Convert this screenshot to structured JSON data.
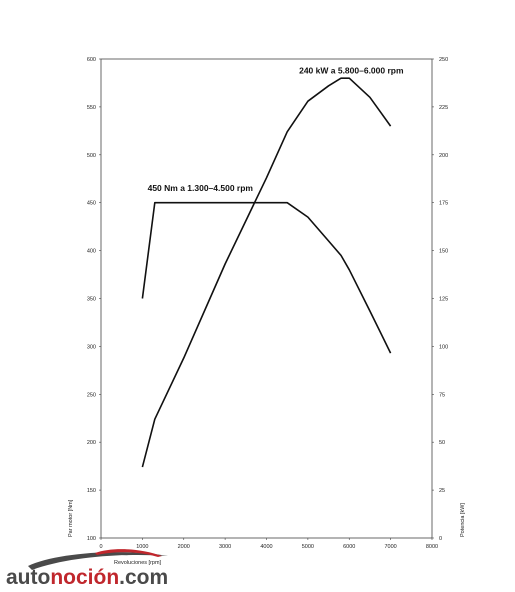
{
  "chart_data": {
    "type": "line",
    "x_label": "Revoluciones [rpm]",
    "y_left_label": "Par motor [Nm]",
    "y_right_label": "Potencia [kW]",
    "xlim": [
      0,
      8000
    ],
    "x_ticks": [
      "0",
      "1000",
      "2000",
      "3000",
      "4000",
      "5000",
      "6000",
      "7000",
      "8000"
    ],
    "y_left_lim": [
      100,
      600
    ],
    "y_left_ticks": [
      "100",
      "150",
      "200",
      "250",
      "300",
      "350",
      "400",
      "450",
      "500",
      "550",
      "600"
    ],
    "y_right_lim": [
      0,
      250
    ],
    "y_right_ticks": [
      "0",
      "25",
      "50",
      "75",
      "100",
      "125",
      "150",
      "175",
      "200",
      "225",
      "250"
    ],
    "grid": false,
    "series": [
      {
        "axis": "left",
        "x": [
          1000,
          1300,
          4500,
          5000,
          5500,
          5800,
          6000,
          6500,
          7000
        ],
        "y": [
          350,
          450,
          450,
          435,
          410,
          395,
          380,
          337,
          293
        ]
      },
      {
        "axis": "right",
        "x": [
          1000,
          1300,
          2000,
          3000,
          4000,
          4500,
          5000,
          5500,
          5800,
          6000,
          6500,
          7000
        ],
        "y": [
          37,
          62,
          94,
          143,
          188,
          212,
          228,
          236,
          240,
          240,
          230,
          215
        ]
      }
    ],
    "annotations": [
      {
        "text": "450 Nm a 1.300–4.500 rpm",
        "x": 2400,
        "y_left": 462
      },
      {
        "text": "240 kW a 5.800–6.000 rpm",
        "x": 6050,
        "y_left": 585
      }
    ]
  },
  "logo": {
    "text_part1": "auto",
    "text_part2": "noción",
    "text_part3": ".com",
    "color_part1": "#4a4a4a",
    "color_part2": "#c0272d",
    "color_part3": "#4a4a4a"
  }
}
